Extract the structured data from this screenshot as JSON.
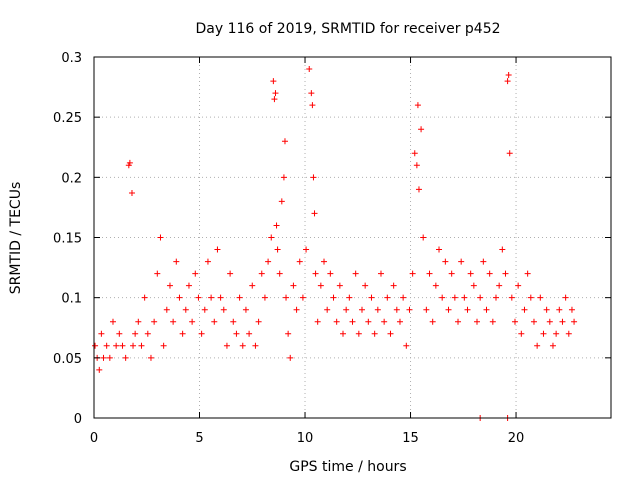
{
  "chart_data": {
    "type": "scatter",
    "title": "Day 116 of 2019, SRMTID for receiver p452",
    "xlabel": "GPS time / hours",
    "ylabel": "SRMTID / TECUs",
    "xlim": [
      0,
      24.5
    ],
    "ylim": [
      0,
      0.3
    ],
    "xticks": [
      0,
      5,
      10,
      15,
      20
    ],
    "xtick_labels": [
      "0",
      "5",
      "10",
      "15",
      "20"
    ],
    "yticks": [
      0,
      0.05,
      0.1,
      0.15,
      0.2,
      0.25,
      0.3
    ],
    "ytick_labels": [
      "0",
      "0.05",
      "0.1",
      "0.15",
      "0.2",
      "0.25",
      "0.3"
    ],
    "grid": true,
    "marker": "plus",
    "color": "#ff0000",
    "series": [
      {
        "name": "SRMTID",
        "x": [
          0.05,
          0.15,
          0.25,
          0.35,
          0.45,
          0.6,
          0.75,
          0.9,
          1.05,
          1.2,
          1.35,
          1.5,
          1.65,
          1.7,
          1.8,
          1.85,
          1.95,
          2.1,
          2.25,
          2.4,
          2.55,
          2.7,
          2.85,
          3.0,
          3.15,
          3.3,
          3.45,
          3.6,
          3.75,
          3.9,
          4.05,
          4.2,
          4.35,
          4.5,
          4.65,
          4.8,
          4.95,
          5.1,
          5.25,
          5.4,
          5.55,
          5.7,
          5.85,
          6.0,
          6.15,
          6.3,
          6.45,
          6.6,
          6.75,
          6.9,
          7.05,
          7.2,
          7.35,
          7.5,
          7.65,
          7.8,
          7.95,
          8.1,
          8.25,
          8.4,
          8.5,
          8.55,
          8.6,
          8.65,
          8.7,
          8.8,
          8.9,
          9.0,
          9.05,
          9.1,
          9.2,
          9.3,
          9.45,
          9.6,
          9.75,
          9.9,
          10.05,
          10.2,
          10.3,
          10.35,
          10.4,
          10.45,
          10.5,
          10.6,
          10.75,
          10.9,
          11.05,
          11.2,
          11.35,
          11.5,
          11.65,
          11.8,
          11.95,
          12.1,
          12.25,
          12.4,
          12.55,
          12.7,
          12.85,
          13.0,
          13.15,
          13.3,
          13.45,
          13.6,
          13.75,
          13.9,
          14.05,
          14.2,
          14.35,
          14.5,
          14.65,
          14.8,
          14.95,
          15.1,
          15.2,
          15.3,
          15.35,
          15.4,
          15.5,
          15.6,
          15.75,
          15.9,
          16.05,
          16.2,
          16.35,
          16.5,
          16.65,
          16.8,
          16.95,
          17.1,
          17.25,
          17.4,
          17.55,
          17.7,
          17.85,
          18.0,
          18.15,
          18.3,
          18.45,
          18.6,
          18.75,
          18.9,
          19.05,
          19.2,
          19.35,
          19.5,
          19.6,
          19.65,
          19.7,
          19.8,
          19.95,
          20.1,
          20.25,
          20.4,
          20.55,
          20.7,
          20.85,
          21.0,
          21.15,
          21.3,
          21.45,
          21.6,
          21.75,
          21.9,
          22.05,
          22.2,
          22.35,
          22.5,
          22.65,
          22.75,
          18.3,
          19.6
        ],
        "y": [
          0.06,
          0.05,
          0.04,
          0.07,
          0.05,
          0.06,
          0.05,
          0.08,
          0.06,
          0.07,
          0.06,
          0.05,
          0.21,
          0.212,
          0.187,
          0.06,
          0.07,
          0.08,
          0.06,
          0.1,
          0.07,
          0.05,
          0.08,
          0.12,
          0.15,
          0.06,
          0.09,
          0.11,
          0.08,
          0.13,
          0.1,
          0.07,
          0.09,
          0.11,
          0.08,
          0.12,
          0.1,
          0.07,
          0.09,
          0.13,
          0.1,
          0.08,
          0.14,
          0.1,
          0.09,
          0.06,
          0.12,
          0.08,
          0.07,
          0.1,
          0.06,
          0.09,
          0.07,
          0.11,
          0.06,
          0.08,
          0.12,
          0.1,
          0.13,
          0.15,
          0.28,
          0.265,
          0.27,
          0.16,
          0.14,
          0.12,
          0.18,
          0.2,
          0.23,
          0.1,
          0.07,
          0.05,
          0.11,
          0.09,
          0.13,
          0.1,
          0.14,
          0.29,
          0.27,
          0.26,
          0.2,
          0.17,
          0.12,
          0.08,
          0.11,
          0.13,
          0.09,
          0.12,
          0.1,
          0.08,
          0.11,
          0.07,
          0.09,
          0.1,
          0.08,
          0.12,
          0.07,
          0.09,
          0.11,
          0.08,
          0.1,
          0.07,
          0.09,
          0.12,
          0.08,
          0.1,
          0.07,
          0.11,
          0.09,
          0.08,
          0.1,
          0.06,
          0.09,
          0.12,
          0.22,
          0.21,
          0.26,
          0.19,
          0.24,
          0.15,
          0.09,
          0.12,
          0.08,
          0.11,
          0.14,
          0.1,
          0.13,
          0.09,
          0.12,
          0.1,
          0.08,
          0.13,
          0.1,
          0.09,
          0.12,
          0.11,
          0.08,
          0.1,
          0.13,
          0.09,
          0.12,
          0.08,
          0.1,
          0.11,
          0.14,
          0.12,
          0.28,
          0.285,
          0.22,
          0.1,
          0.08,
          0.11,
          0.07,
          0.09,
          0.12,
          0.1,
          0.08,
          0.06,
          0.1,
          0.07,
          0.09,
          0.08,
          0.06,
          0.07,
          0.09,
          0.08,
          0.1,
          0.07,
          0.09,
          0.08,
          0.0,
          0.0
        ]
      }
    ]
  }
}
